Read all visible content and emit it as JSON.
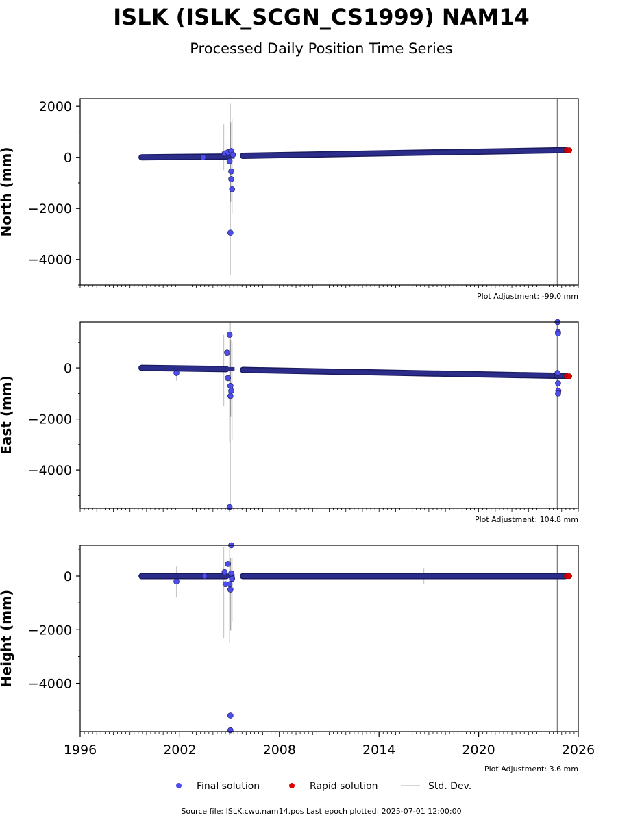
{
  "title": "ISLK (ISLK_SCGN_CS1999) NAM14",
  "subtitle": "Processed Daily Position Time Series",
  "colors": {
    "final": "#4d4df0",
    "rapid": "#e00000",
    "std": "#c8c8c8",
    "event_line": "#808080"
  },
  "chart_data": [
    {
      "type": "scatter",
      "ylabel": "North (mm)",
      "xlim": [
        1996,
        2026
      ],
      "ylim": [
        -5000,
        2300
      ],
      "yticks": [
        -4000,
        -2000,
        0,
        2000
      ],
      "adjustment": "Plot Adjustment: -99.0 mm",
      "event_line_x": 2024.75,
      "final_trend": [
        [
          1999.7,
          0
        ],
        [
          2004.8,
          30
        ],
        [
          2005.8,
          60
        ],
        [
          2025.2,
          280
        ]
      ],
      "gap": [
        2005.3,
        2005.8
      ],
      "final_outliers": [
        [
          2003.4,
          0
        ],
        [
          2004.7,
          150
        ],
        [
          2004.9,
          200
        ],
        [
          2005.0,
          -150
        ],
        [
          2005.1,
          -550
        ],
        [
          2005.1,
          -850
        ],
        [
          2005.15,
          -1250
        ],
        [
          2005.05,
          -2950
        ],
        [
          2005.1,
          250
        ],
        [
          2005.2,
          100
        ]
      ],
      "std_bars": [
        [
          2004.65,
          -500,
          1300
        ],
        [
          2005.05,
          -4600,
          2100
        ],
        [
          2005.15,
          -2200,
          1500
        ],
        [
          2004.85,
          -300,
          600
        ]
      ],
      "rapid": [
        [
          2025.3,
          280
        ],
        [
          2025.45,
          275
        ]
      ]
    },
    {
      "type": "scatter",
      "ylabel": "East (mm)",
      "xlim": [
        1996,
        2026
      ],
      "ylim": [
        -5500,
        1800
      ],
      "yticks": [
        -4000,
        -2000,
        0
      ],
      "adjustment": "Plot Adjustment: 104.8 mm",
      "event_line_x": 2024.75,
      "final_trend": [
        [
          1999.7,
          0
        ],
        [
          2004.8,
          -50
        ],
        [
          2005.8,
          -80
        ],
        [
          2024.7,
          -310
        ],
        [
          2025.2,
          -320
        ]
      ],
      "gap": [
        2005.3,
        2005.8
      ],
      "final_outliers": [
        [
          2001.8,
          -200
        ],
        [
          2004.85,
          600
        ],
        [
          2005.0,
          1300
        ],
        [
          2005.05,
          -700
        ],
        [
          2005.1,
          -900
        ],
        [
          2005.05,
          -1100
        ],
        [
          2005.0,
          -5450
        ],
        [
          2004.9,
          -400
        ],
        [
          2024.75,
          1800
        ],
        [
          2024.78,
          1400
        ],
        [
          2024.78,
          1350
        ],
        [
          2024.75,
          -200
        ],
        [
          2024.78,
          -600
        ],
        [
          2024.8,
          -900
        ],
        [
          2024.78,
          -1000
        ]
      ],
      "std_bars": [
        [
          2004.65,
          -1500,
          1300
        ],
        [
          2005.0,
          -2900,
          1800
        ],
        [
          2005.05,
          -5500,
          1800
        ],
        [
          2005.15,
          -2800,
          1000
        ],
        [
          2001.8,
          -500,
          100
        ]
      ],
      "rapid": [
        [
          2025.3,
          -320
        ],
        [
          2025.45,
          -330
        ]
      ]
    },
    {
      "type": "scatter",
      "ylabel": "Height (mm)",
      "xlim": [
        1996,
        2026
      ],
      "ylim": [
        -5800,
        1150
      ],
      "yticks": [
        -4000,
        -2000,
        0
      ],
      "adjustment": "Plot Adjustment: 3.6 mm",
      "event_line_x": 2024.75,
      "final_trend": [
        [
          1999.7,
          0
        ],
        [
          2004.8,
          0
        ],
        [
          2005.8,
          0
        ],
        [
          2025.2,
          0
        ]
      ],
      "gap": [
        2005.3,
        2005.8
      ],
      "final_outliers": [
        [
          2001.8,
          -200
        ],
        [
          2004.7,
          150
        ],
        [
          2004.75,
          -300
        ],
        [
          2004.9,
          450
        ],
        [
          2005.0,
          -300
        ],
        [
          2005.05,
          -500
        ],
        [
          2005.1,
          1150
        ],
        [
          2005.05,
          -5200
        ],
        [
          2005.05,
          -5750
        ],
        [
          2005.1,
          100
        ],
        [
          2005.15,
          -100
        ],
        [
          2003.5,
          0
        ]
      ],
      "std_bars": [
        [
          2004.65,
          -2300,
          1100
        ],
        [
          2005.0,
          -2500,
          1150
        ],
        [
          2005.15,
          -1700,
          700
        ],
        [
          2001.8,
          -800,
          350
        ],
        [
          2016.7,
          -300,
          300
        ]
      ],
      "rapid": [
        [
          2025.3,
          0
        ],
        [
          2025.45,
          0
        ]
      ]
    }
  ],
  "xticks": [
    1996,
    2002,
    2008,
    2014,
    2020,
    2026
  ],
  "legend": {
    "final": "Final solution",
    "rapid": "Rapid solution",
    "std": "Std. Dev."
  },
  "footer": "Source file: ISLK.cwu.nam14.pos  Last epoch plotted: 2025-07-01 12:00:00"
}
